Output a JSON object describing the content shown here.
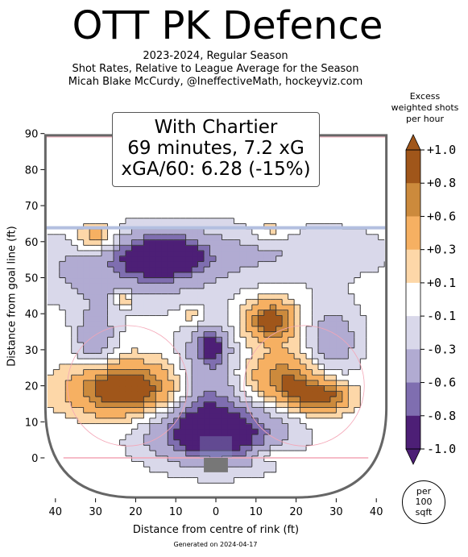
{
  "title": "OTT PK Defence",
  "subtitle_lines": [
    "2023-2024, Regular Season",
    "Shot Rates, Relative to League Average for the Season",
    "Micah Blake McCurdy, @IneffectiveMath, hockeyviz.com"
  ],
  "info_box": {
    "line1": "With Chartier",
    "line2": "69 minutes, 7.2 xG",
    "line3": "xGA/60: 6.28 (-15%)"
  },
  "colorbar": {
    "title_lines": [
      "Excess",
      "weighted shots",
      "per hour"
    ],
    "tick_labels": [
      "+1.0",
      "+0.8",
      "+0.6",
      "+0.3",
      "+0.1",
      "-0.1",
      "-0.3",
      "-0.6",
      "-0.8",
      "-1.0"
    ],
    "colors": [
      "#a0561a",
      "#cc8a3c",
      "#f6b062",
      "#fdd7a8",
      "#ffffff",
      "#d9d8ea",
      "#b1abd2",
      "#7f6eb0",
      "#4d1f76"
    ]
  },
  "unit_badge_lines": [
    "per",
    "100",
    "sqft"
  ],
  "footer": "Generated on 2024-04-17",
  "chart_data": {
    "type": "heatmap",
    "xlabel": "Distance from centre of rink (ft)",
    "ylabel": "Distance from goal line (ft)",
    "xlim": [
      -42.5,
      42.5
    ],
    "ylim": [
      -11,
      90
    ],
    "x_ticks": [
      -40,
      -30,
      -20,
      -10,
      0,
      10,
      20,
      30,
      40
    ],
    "x_tick_labels": [
      "40",
      "30",
      "20",
      "10",
      "0",
      "10",
      "20",
      "30",
      "40"
    ],
    "y_ticks": [
      0,
      10,
      20,
      30,
      40,
      50,
      60,
      70,
      80,
      90
    ],
    "y_tick_labels": [
      "0",
      "10",
      "20",
      "30",
      "40",
      "50",
      "60",
      "70",
      "80",
      "90"
    ],
    "value_range": [
      -1.0,
      1.0
    ],
    "blobs": [
      {
        "x": 0,
        "y": 7,
        "sx": 11,
        "sy": 6,
        "v": -1.2
      },
      {
        "x": -2,
        "y": 24,
        "sx": 5,
        "sy": 10,
        "v": -0.55
      },
      {
        "x": -13,
        "y": 56,
        "sx": 7,
        "sy": 4,
        "v": -1.0
      },
      {
        "x": -24,
        "y": 52,
        "sx": 16,
        "sy": 7,
        "v": -0.45
      },
      {
        "x": 12,
        "y": 57,
        "sx": 22,
        "sy": 6,
        "v": -0.3
      },
      {
        "x": -30,
        "y": 33,
        "sx": 3.5,
        "sy": 6,
        "v": -0.55
      },
      {
        "x": 29,
        "y": 33,
        "sx": 5,
        "sy": 7,
        "v": -0.5
      },
      {
        "x": -1,
        "y": 31,
        "sx": 2.5,
        "sy": 3,
        "v": -0.6
      },
      {
        "x": -23,
        "y": 19,
        "sx": 9,
        "sy": 5,
        "v": 1.2
      },
      {
        "x": 17,
        "y": 22,
        "sx": 6,
        "sy": 5,
        "v": 0.8
      },
      {
        "x": 26,
        "y": 17,
        "sx": 5,
        "sy": 3,
        "v": 1.0
      },
      {
        "x": 14,
        "y": 38,
        "sx": 4.5,
        "sy": 4,
        "v": 1.0
      },
      {
        "x": -30,
        "y": 61,
        "sx": 3.5,
        "sy": 3,
        "v": 0.6
      },
      {
        "x": 14,
        "y": 63,
        "sx": 4,
        "sy": 2.5,
        "v": 0.3
      },
      {
        "x": 14,
        "y": 1,
        "sx": 3.5,
        "sy": 1.5,
        "v": 0.3
      },
      {
        "x": -6,
        "y": 40,
        "sx": 2,
        "sy": 2,
        "v": 0.35
      },
      {
        "x": -23,
        "y": 44,
        "sx": 1.5,
        "sy": 1.5,
        "v": 0.6
      }
    ]
  }
}
